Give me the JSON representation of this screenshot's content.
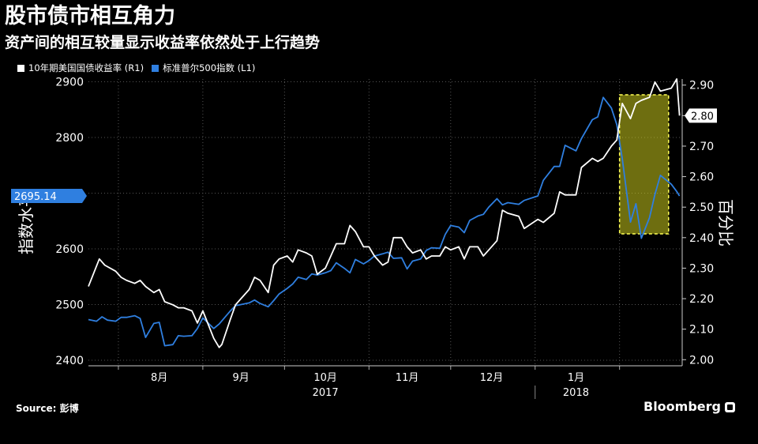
{
  "title": "股市债市相互角力",
  "subtitle": "资产间的相互较量显示收益率依然处于上行趋势",
  "source": "Source: 彭博",
  "brand": "Bloomberg",
  "brand_icon": "bloomberg-logo-icon",
  "colors": {
    "background": "#000000",
    "spx": "#2f7fe0",
    "yield": "#ffffff",
    "highlight": "#c8c81e",
    "label_spx": "#2f7fe0"
  },
  "chart_data": {
    "type": "line",
    "left_axis": {
      "label": "指数水平",
      "ticks": [
        2400,
        2500,
        2600,
        2700,
        2800,
        2900
      ],
      "range": [
        2390,
        2905
      ]
    },
    "right_axis": {
      "label": "百分比",
      "ticks": [
        "2.90",
        "2.80",
        "2.70",
        "2.60",
        "2.50",
        "2.40",
        "2.30",
        "2.20",
        "2.10",
        "2.00"
      ],
      "range": [
        1.98,
        2.92
      ]
    },
    "x_axis": {
      "months": [
        "8月",
        "9月",
        "10月",
        "11月",
        "12月",
        "1月"
      ],
      "years": [
        "2017",
        "2018"
      ]
    },
    "current_labels": {
      "spx": "2695.14",
      "yield": "2.80"
    },
    "highlight_box": {
      "start": "2018-02-01",
      "end": "2018-02-19"
    },
    "series": [
      {
        "name": "10年期美国国债收益率 (R1)",
        "axis": "right",
        "points": [
          [
            "2017-07-21",
            2.24
          ],
          [
            "2017-07-25",
            2.33
          ],
          [
            "2017-07-27",
            2.31
          ],
          [
            "2017-07-31",
            2.29
          ],
          [
            "2017-08-02",
            2.27
          ],
          [
            "2017-08-04",
            2.26
          ],
          [
            "2017-08-07",
            2.25
          ],
          [
            "2017-08-09",
            2.26
          ],
          [
            "2017-08-11",
            2.24
          ],
          [
            "2017-08-14",
            2.22
          ],
          [
            "2017-08-16",
            2.23
          ],
          [
            "2017-08-18",
            2.19
          ],
          [
            "2017-08-21",
            2.18
          ],
          [
            "2017-08-23",
            2.17
          ],
          [
            "2017-08-25",
            2.17
          ],
          [
            "2017-08-28",
            2.16
          ],
          [
            "2017-08-30",
            2.12
          ],
          [
            "2017-09-01",
            2.16
          ],
          [
            "2017-09-05",
            2.07
          ],
          [
            "2017-09-07",
            2.04
          ],
          [
            "2017-09-08",
            2.05
          ],
          [
            "2017-09-11",
            2.13
          ],
          [
            "2017-09-13",
            2.18
          ],
          [
            "2017-09-15",
            2.2
          ],
          [
            "2017-09-18",
            2.23
          ],
          [
            "2017-09-20",
            2.27
          ],
          [
            "2017-09-22",
            2.26
          ],
          [
            "2017-09-25",
            2.22
          ],
          [
            "2017-09-27",
            2.31
          ],
          [
            "2017-09-29",
            2.33
          ],
          [
            "2017-10-02",
            2.34
          ],
          [
            "2017-10-04",
            2.32
          ],
          [
            "2017-10-06",
            2.36
          ],
          [
            "2017-10-09",
            2.35
          ],
          [
            "2017-10-11",
            2.34
          ],
          [
            "2017-10-13",
            2.28
          ],
          [
            "2017-10-16",
            2.3
          ],
          [
            "2017-10-18",
            2.34
          ],
          [
            "2017-10-20",
            2.38
          ],
          [
            "2017-10-23",
            2.38
          ],
          [
            "2017-10-25",
            2.44
          ],
          [
            "2017-10-27",
            2.42
          ],
          [
            "2017-10-30",
            2.37
          ],
          [
            "2017-11-01",
            2.37
          ],
          [
            "2017-11-03",
            2.34
          ],
          [
            "2017-11-06",
            2.31
          ],
          [
            "2017-11-08",
            2.32
          ],
          [
            "2017-11-10",
            2.4
          ],
          [
            "2017-11-13",
            2.4
          ],
          [
            "2017-11-15",
            2.37
          ],
          [
            "2017-11-17",
            2.35
          ],
          [
            "2017-11-20",
            2.36
          ],
          [
            "2017-11-22",
            2.33
          ],
          [
            "2017-11-24",
            2.34
          ],
          [
            "2017-11-27",
            2.34
          ],
          [
            "2017-11-29",
            2.37
          ],
          [
            "2017-12-01",
            2.36
          ],
          [
            "2017-12-04",
            2.37
          ],
          [
            "2017-12-06",
            2.33
          ],
          [
            "2017-12-08",
            2.37
          ],
          [
            "2017-12-11",
            2.37
          ],
          [
            "2017-12-13",
            2.34
          ],
          [
            "2017-12-15",
            2.36
          ],
          [
            "2017-12-18",
            2.39
          ],
          [
            "2017-12-20",
            2.49
          ],
          [
            "2017-12-22",
            2.48
          ],
          [
            "2017-12-26",
            2.47
          ],
          [
            "2017-12-28",
            2.43
          ],
          [
            "2018-01-02",
            2.46
          ],
          [
            "2018-01-04",
            2.45
          ],
          [
            "2018-01-08",
            2.48
          ],
          [
            "2018-01-10",
            2.55
          ],
          [
            "2018-01-12",
            2.54
          ],
          [
            "2018-01-16",
            2.54
          ],
          [
            "2018-01-18",
            2.63
          ],
          [
            "2018-01-22",
            2.66
          ],
          [
            "2018-01-24",
            2.65
          ],
          [
            "2018-01-26",
            2.66
          ],
          [
            "2018-01-29",
            2.7
          ],
          [
            "2018-01-31",
            2.72
          ],
          [
            "2018-02-02",
            2.84
          ],
          [
            "2018-02-05",
            2.79
          ],
          [
            "2018-02-07",
            2.84
          ],
          [
            "2018-02-09",
            2.85
          ],
          [
            "2018-02-12",
            2.86
          ],
          [
            "2018-02-14",
            2.91
          ],
          [
            "2018-02-16",
            2.88
          ],
          [
            "2018-02-20",
            2.89
          ],
          [
            "2018-02-22",
            2.92
          ],
          [
            "2018-02-23",
            2.8
          ]
        ]
      },
      {
        "name": "标准普尔500指数 (L1)",
        "axis": "left",
        "points": [
          [
            "2017-07-21",
            2473
          ],
          [
            "2017-07-24",
            2470
          ],
          [
            "2017-07-26",
            2478
          ],
          [
            "2017-07-28",
            2472
          ],
          [
            "2017-07-31",
            2470
          ],
          [
            "2017-08-02",
            2477
          ],
          [
            "2017-08-04",
            2477
          ],
          [
            "2017-08-07",
            2480
          ],
          [
            "2017-08-09",
            2475
          ],
          [
            "2017-08-11",
            2441
          ],
          [
            "2017-08-14",
            2466
          ],
          [
            "2017-08-16",
            2468
          ],
          [
            "2017-08-18",
            2426
          ],
          [
            "2017-08-21",
            2428
          ],
          [
            "2017-08-23",
            2444
          ],
          [
            "2017-08-25",
            2443
          ],
          [
            "2017-08-28",
            2444
          ],
          [
            "2017-08-30",
            2457
          ],
          [
            "2017-09-01",
            2476
          ],
          [
            "2017-09-05",
            2457
          ],
          [
            "2017-09-07",
            2465
          ],
          [
            "2017-09-11",
            2488
          ],
          [
            "2017-09-13",
            2498
          ],
          [
            "2017-09-15",
            2500
          ],
          [
            "2017-09-18",
            2503
          ],
          [
            "2017-09-20",
            2508
          ],
          [
            "2017-09-22",
            2502
          ],
          [
            "2017-09-25",
            2496
          ],
          [
            "2017-09-27",
            2507
          ],
          [
            "2017-09-29",
            2519
          ],
          [
            "2017-10-02",
            2529
          ],
          [
            "2017-10-04",
            2537
          ],
          [
            "2017-10-06",
            2549
          ],
          [
            "2017-10-09",
            2545
          ],
          [
            "2017-10-11",
            2555
          ],
          [
            "2017-10-13",
            2553
          ],
          [
            "2017-10-16",
            2557
          ],
          [
            "2017-10-18",
            2561
          ],
          [
            "2017-10-20",
            2575
          ],
          [
            "2017-10-23",
            2565
          ],
          [
            "2017-10-25",
            2557
          ],
          [
            "2017-10-27",
            2581
          ],
          [
            "2017-10-30",
            2573
          ],
          [
            "2017-11-01",
            2579
          ],
          [
            "2017-11-03",
            2587
          ],
          [
            "2017-11-06",
            2591
          ],
          [
            "2017-11-08",
            2594
          ],
          [
            "2017-11-10",
            2583
          ],
          [
            "2017-11-13",
            2584
          ],
          [
            "2017-11-15",
            2564
          ],
          [
            "2017-11-17",
            2578
          ],
          [
            "2017-11-20",
            2582
          ],
          [
            "2017-11-22",
            2597
          ],
          [
            "2017-11-24",
            2602
          ],
          [
            "2017-11-27",
            2601
          ],
          [
            "2017-11-29",
            2626
          ],
          [
            "2017-12-01",
            2642
          ],
          [
            "2017-12-04",
            2639
          ],
          [
            "2017-12-06",
            2629
          ],
          [
            "2017-12-08",
            2651
          ],
          [
            "2017-12-11",
            2659
          ],
          [
            "2017-12-13",
            2662
          ],
          [
            "2017-12-15",
            2675
          ],
          [
            "2017-12-18",
            2690
          ],
          [
            "2017-12-20",
            2679
          ],
          [
            "2017-12-22",
            2683
          ],
          [
            "2017-12-26",
            2680
          ],
          [
            "2017-12-28",
            2687
          ],
          [
            "2018-01-02",
            2695
          ],
          [
            "2018-01-04",
            2723
          ],
          [
            "2018-01-08",
            2748
          ],
          [
            "2018-01-10",
            2748
          ],
          [
            "2018-01-12",
            2786
          ],
          [
            "2018-01-16",
            2776
          ],
          [
            "2018-01-18",
            2798
          ],
          [
            "2018-01-22",
            2832
          ],
          [
            "2018-01-24",
            2837
          ],
          [
            "2018-01-26",
            2872
          ],
          [
            "2018-01-29",
            2853
          ],
          [
            "2018-01-31",
            2823
          ],
          [
            "2018-02-02",
            2762
          ],
          [
            "2018-02-05",
            2648
          ],
          [
            "2018-02-07",
            2681
          ],
          [
            "2018-02-09",
            2619
          ],
          [
            "2018-02-12",
            2656
          ],
          [
            "2018-02-14",
            2698
          ],
          [
            "2018-02-16",
            2732
          ],
          [
            "2018-02-20",
            2716
          ],
          [
            "2018-02-22",
            2703
          ],
          [
            "2018-02-23",
            2695
          ]
        ]
      }
    ]
  }
}
